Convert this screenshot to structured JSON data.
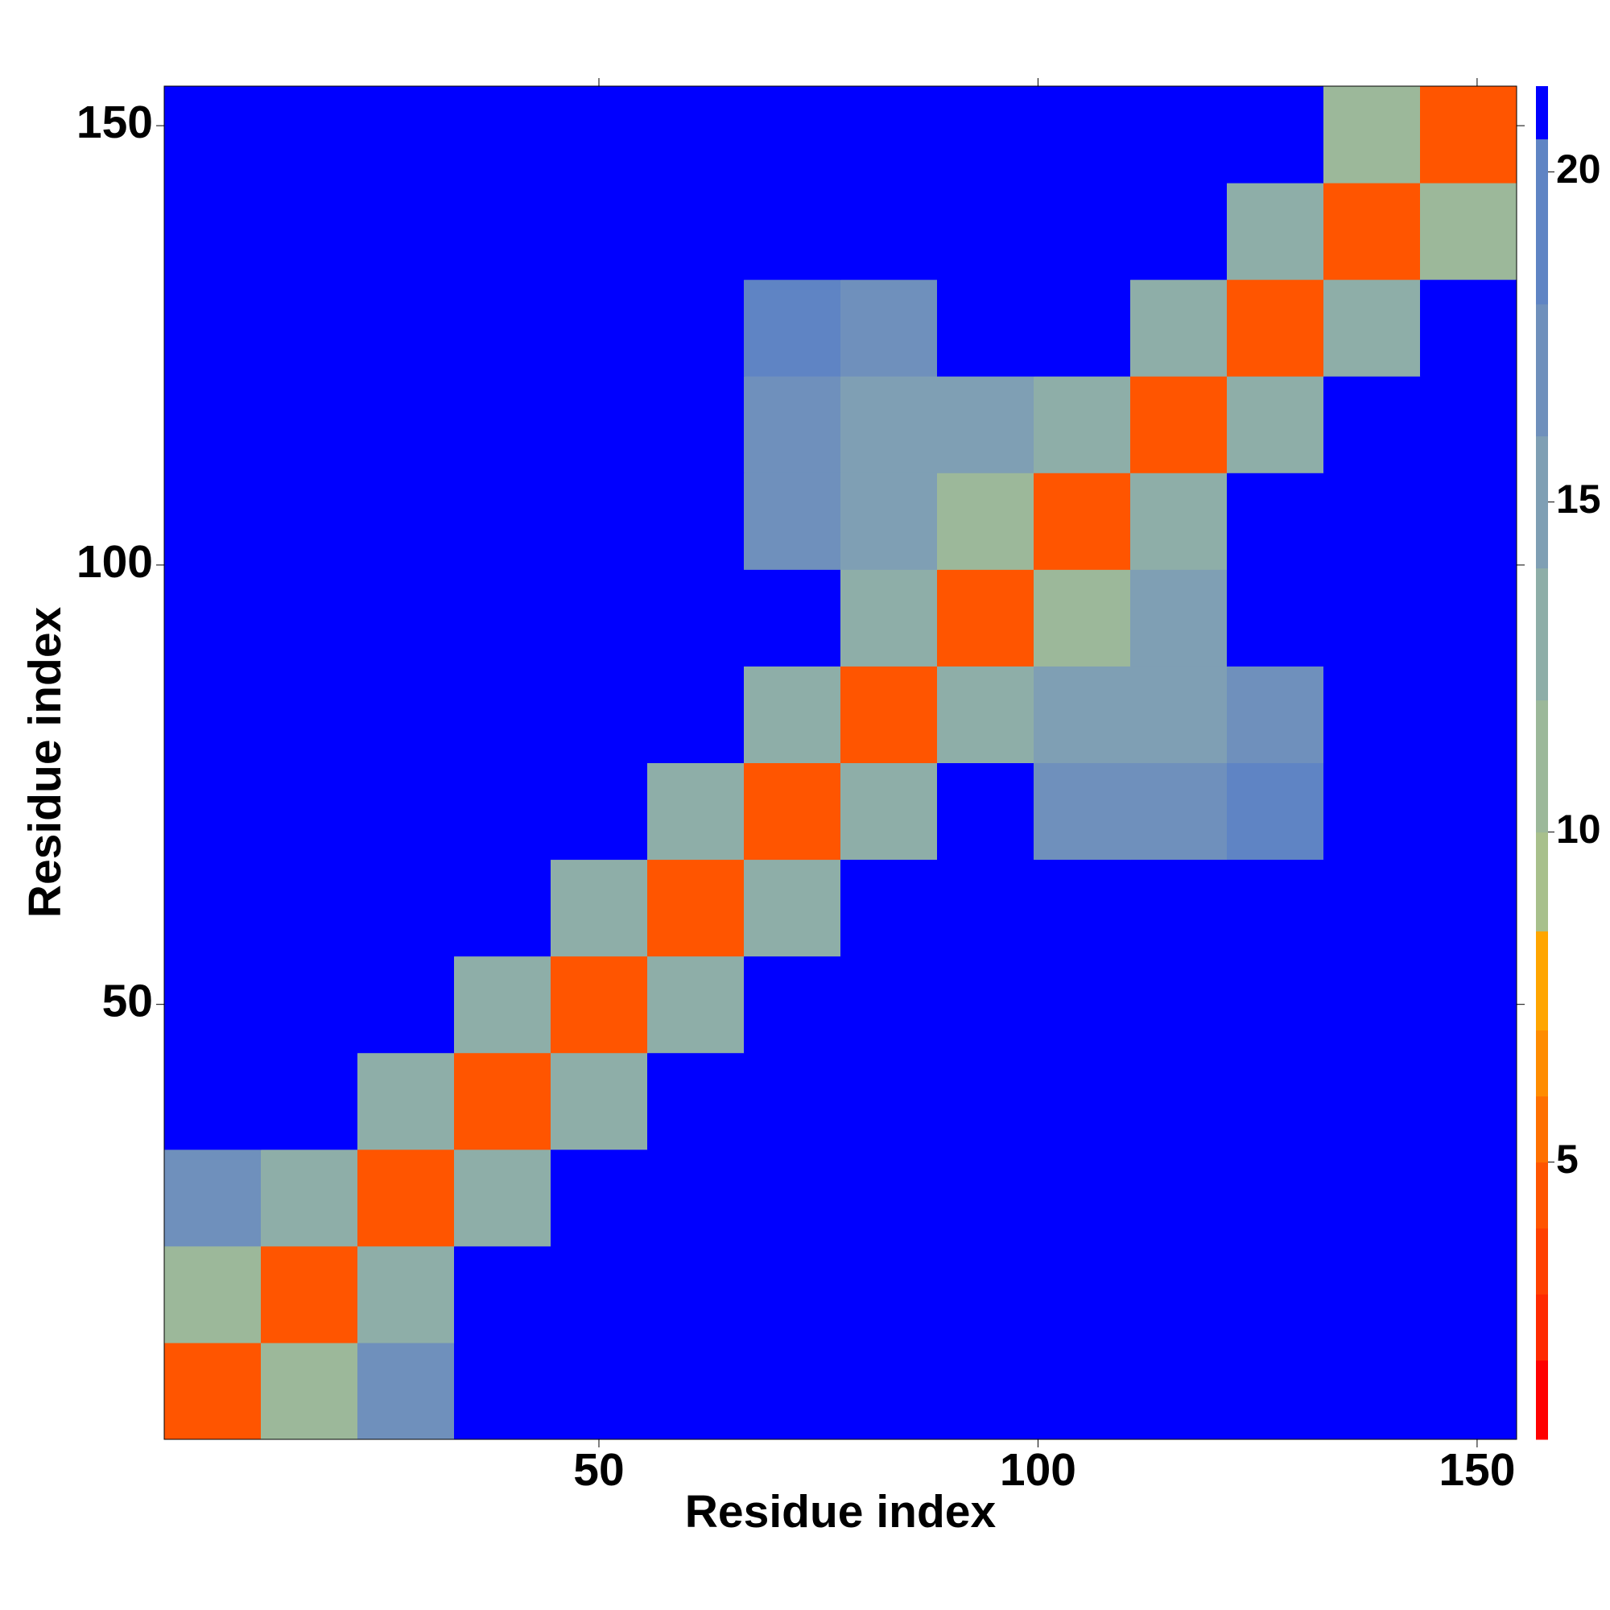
{
  "chart_data": {
    "type": "heatmap",
    "xlabel": "Residue index",
    "ylabel": "Residue index",
    "xlim": [
      0.5,
      154.5
    ],
    "ylim": [
      0.5,
      154.5
    ],
    "xticks": [
      50,
      100,
      150
    ],
    "yticks": [
      50,
      100,
      150
    ],
    "xbins": [
      0.5,
      11.5,
      22.5,
      33.5,
      44.5,
      55.5,
      66.5,
      77.5,
      88.5,
      99.5,
      110.5,
      121.5,
      132.5,
      143.5,
      154.5
    ],
    "ybins": [
      0.5,
      11.5,
      22.5,
      33.5,
      44.5,
      55.5,
      66.5,
      77.5,
      88.5,
      99.5,
      110.5,
      121.5,
      132.5,
      143.5,
      154.5
    ],
    "z": [
      [
        5,
        12,
        17,
        21,
        21,
        21,
        21,
        21,
        21,
        21,
        21,
        21,
        21,
        21
      ],
      [
        12,
        5,
        13,
        21,
        21,
        21,
        21,
        21,
        21,
        21,
        21,
        21,
        21,
        21
      ],
      [
        17,
        13,
        5,
        14,
        21,
        21,
        21,
        21,
        21,
        21,
        21,
        21,
        21,
        21
      ],
      [
        21,
        21,
        14,
        5,
        14,
        21,
        21,
        21,
        21,
        21,
        21,
        21,
        21,
        21
      ],
      [
        21,
        21,
        21,
        14,
        5,
        14,
        21,
        21,
        21,
        21,
        21,
        21,
        21,
        21
      ],
      [
        21,
        21,
        21,
        21,
        14,
        5,
        14,
        21,
        21,
        21,
        21,
        21,
        21,
        21
      ],
      [
        21,
        21,
        21,
        21,
        21,
        14,
        5,
        14,
        21,
        18,
        17,
        19,
        21,
        21
      ],
      [
        21,
        21,
        21,
        21,
        21,
        21,
        14,
        5,
        14,
        16,
        15,
        18,
        21,
        21
      ],
      [
        21,
        21,
        21,
        21,
        21,
        21,
        21,
        14,
        5,
        12,
        15,
        21,
        21,
        21
      ],
      [
        21,
        21,
        21,
        21,
        21,
        21,
        18,
        16,
        12,
        5,
        14,
        21,
        21,
        21
      ],
      [
        21,
        21,
        21,
        21,
        21,
        21,
        17,
        15,
        15,
        14,
        5,
        14,
        21,
        21
      ],
      [
        21,
        21,
        21,
        21,
        21,
        21,
        19,
        18,
        21,
        21,
        14,
        5,
        13,
        21
      ],
      [
        21,
        21,
        21,
        21,
        21,
        21,
        21,
        21,
        21,
        21,
        21,
        13,
        5,
        11
      ],
      [
        21,
        21,
        21,
        21,
        21,
        21,
        21,
        21,
        21,
        21,
        21,
        21,
        11,
        5
      ]
    ],
    "zlim": [
      0.8,
      21.3
    ],
    "zticks": [
      5,
      10,
      15,
      20
    ],
    "colorscale": [
      {
        "value": 2,
        "color": "#ff0000"
      },
      {
        "value": 3,
        "color": "#ff2a00"
      },
      {
        "value": 4,
        "color": "#ff4000"
      },
      {
        "value": 5,
        "color": "#ff5500"
      },
      {
        "value": 6,
        "color": "#ff7000"
      },
      {
        "value": 7,
        "color": "#ff8c00"
      },
      {
        "value": 8.5,
        "color": "#ffa500"
      },
      {
        "value": 10,
        "color": "#a8c08c"
      },
      {
        "value": 12,
        "color": "#9cb89a"
      },
      {
        "value": 14,
        "color": "#8eaea8"
      },
      {
        "value": 16,
        "color": "#7f9fb4"
      },
      {
        "value": 18,
        "color": "#6f90bc"
      },
      {
        "value": 20.5,
        "color": "#5f84c4"
      },
      {
        "value": 21.3,
        "color": "#0000ff"
      }
    ]
  }
}
